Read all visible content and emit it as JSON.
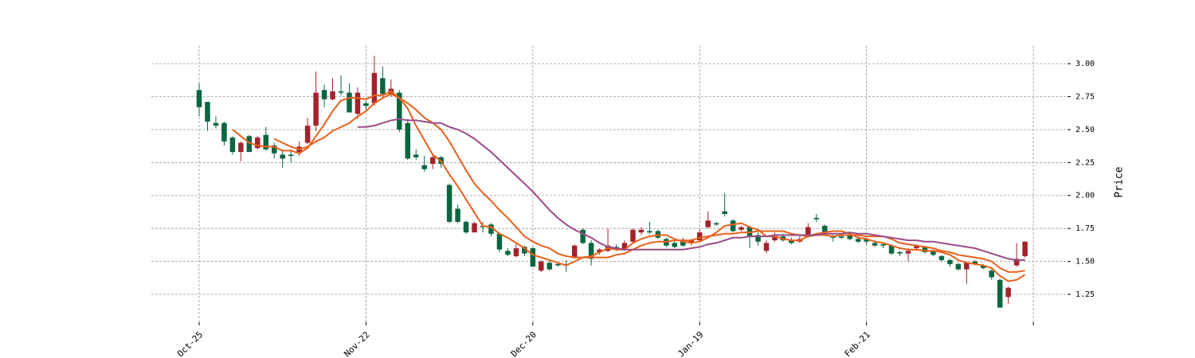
{
  "chart_data": {
    "type": "candlestick",
    "ylabel": "Price",
    "open": [
      2.8,
      2.71,
      2.55,
      2.55,
      2.44,
      2.33,
      2.45,
      2.36,
      2.46,
      2.38,
      2.31,
      2.31,
      2.33,
      2.4,
      2.53,
      2.8,
      2.73,
      2.79,
      2.78,
      2.62,
      2.7,
      2.7,
      2.89,
      2.77,
      2.78,
      2.55,
      2.31,
      2.23,
      2.24,
      2.29,
      2.08,
      1.9,
      1.8,
      1.72,
      1.77,
      1.78,
      1.71,
      1.58,
      1.54,
      1.61,
      1.6,
      1.43,
      1.49,
      1.48,
      1.48,
      1.53,
      1.74,
      1.64,
      1.57,
      1.58,
      1.61,
      1.59,
      1.65,
      1.72,
      1.73,
      1.73,
      1.67,
      1.64,
      1.65,
      1.64,
      1.66,
      1.76,
      1.79,
      1.88,
      1.81,
      1.74,
      1.76,
      1.7,
      1.58,
      1.66,
      1.69,
      1.66,
      1.65,
      1.7,
      1.83,
      1.77,
      1.69,
      1.69,
      1.7,
      1.67,
      1.67,
      1.64,
      1.63,
      1.62,
      1.57,
      1.56,
      1.6,
      1.61,
      1.58,
      1.54,
      1.51,
      1.48,
      1.44,
      1.5,
      1.47,
      1.43,
      1.36,
      1.23,
      1.47,
      1.54
    ],
    "high": [
      2.85,
      2.71,
      2.6,
      2.56,
      2.45,
      2.41,
      2.46,
      2.45,
      2.52,
      2.4,
      2.35,
      2.35,
      2.41,
      2.59,
      2.94,
      2.84,
      2.89,
      2.91,
      2.85,
      2.82,
      2.72,
      3.06,
      2.98,
      2.88,
      2.8,
      2.58,
      2.35,
      2.3,
      2.31,
      2.3,
      2.09,
      1.93,
      1.81,
      1.8,
      1.8,
      1.79,
      1.72,
      1.6,
      1.63,
      1.62,
      1.61,
      1.51,
      1.51,
      1.49,
      1.51,
      1.63,
      1.75,
      1.66,
      1.6,
      1.75,
      1.63,
      1.66,
      1.75,
      1.76,
      1.8,
      1.74,
      1.68,
      1.66,
      1.68,
      1.67,
      1.74,
      1.88,
      1.8,
      2.02,
      1.82,
      1.77,
      1.77,
      1.72,
      1.66,
      1.72,
      1.71,
      1.68,
      1.7,
      1.79,
      1.86,
      1.78,
      1.7,
      1.7,
      1.71,
      1.69,
      1.68,
      1.66,
      1.64,
      1.63,
      1.58,
      1.6,
      1.63,
      1.62,
      1.59,
      1.55,
      1.52,
      1.49,
      1.5,
      1.51,
      1.48,
      1.44,
      1.37,
      1.31,
      1.64,
      1.65
    ],
    "low": [
      2.6,
      2.49,
      2.51,
      2.38,
      2.31,
      2.26,
      2.33,
      2.35,
      2.34,
      2.28,
      2.21,
      2.25,
      2.3,
      2.39,
      2.49,
      2.67,
      2.72,
      2.76,
      2.63,
      2.58,
      2.65,
      2.68,
      2.73,
      2.75,
      2.48,
      2.27,
      2.27,
      2.18,
      2.2,
      2.21,
      1.79,
      1.79,
      1.71,
      1.72,
      1.72,
      1.69,
      1.57,
      1.54,
      1.53,
      1.54,
      1.46,
      1.42,
      1.43,
      1.46,
      1.42,
      1.52,
      1.63,
      1.47,
      1.55,
      1.57,
      1.58,
      1.58,
      1.64,
      1.7,
      1.71,
      1.67,
      1.61,
      1.6,
      1.61,
      1.62,
      1.65,
      1.75,
      1.77,
      1.84,
      1.72,
      1.73,
      1.6,
      1.62,
      1.56,
      1.65,
      1.65,
      1.63,
      1.64,
      1.69,
      1.8,
      1.7,
      1.65,
      1.67,
      1.66,
      1.64,
      1.63,
      1.61,
      1.6,
      1.55,
      1.54,
      1.5,
      1.58,
      1.56,
      1.54,
      1.5,
      1.46,
      1.43,
      1.33,
      1.47,
      1.44,
      1.36,
      1.15,
      1.18,
      1.46,
      1.53
    ],
    "close": [
      2.67,
      2.56,
      2.53,
      2.41,
      2.33,
      2.4,
      2.33,
      2.44,
      2.35,
      2.32,
      2.28,
      2.3,
      2.37,
      2.53,
      2.78,
      2.73,
      2.79,
      2.78,
      2.63,
      2.78,
      2.68,
      2.93,
      2.77,
      2.81,
      2.5,
      2.28,
      2.29,
      2.2,
      2.29,
      2.24,
      1.8,
      1.8,
      1.72,
      1.79,
      1.76,
      1.71,
      1.59,
      1.55,
      1.6,
      1.56,
      1.46,
      1.5,
      1.44,
      1.47,
      1.47,
      1.62,
      1.64,
      1.52,
      1.59,
      1.62,
      1.59,
      1.64,
      1.74,
      1.74,
      1.72,
      1.68,
      1.62,
      1.61,
      1.62,
      1.66,
      1.72,
      1.81,
      1.78,
      1.86,
      1.73,
      1.76,
      1.69,
      1.65,
      1.64,
      1.7,
      1.66,
      1.64,
      1.67,
      1.76,
      1.82,
      1.72,
      1.68,
      1.68,
      1.67,
      1.65,
      1.65,
      1.62,
      1.62,
      1.56,
      1.56,
      1.58,
      1.62,
      1.57,
      1.55,
      1.51,
      1.48,
      1.44,
      1.49,
      1.48,
      1.45,
      1.38,
      1.15,
      1.3,
      1.52,
      1.65
    ],
    "up_color": "#a3232d",
    "down_color": "#0a6640",
    "moving_averages": [
      {
        "color": "#e8601c",
        "values": [
          null,
          null,
          null,
          null,
          2.5,
          2.45,
          2.4,
          2.38,
          2.37,
          2.37,
          2.34,
          2.34,
          2.32,
          2.36,
          2.45,
          2.54,
          2.64,
          2.72,
          2.74,
          2.74,
          2.73,
          2.76,
          2.76,
          2.79,
          2.74,
          2.66,
          2.53,
          2.42,
          2.31,
          2.26,
          2.16,
          2.07,
          1.97,
          1.87,
          1.77,
          1.76,
          1.71,
          1.68,
          1.64,
          1.6,
          1.55,
          1.53,
          1.51,
          1.49,
          1.47,
          1.5,
          1.53,
          1.54,
          1.57,
          1.6,
          1.59,
          1.59,
          1.64,
          1.67,
          1.69,
          1.7,
          1.7,
          1.67,
          1.65,
          1.64,
          1.65,
          1.68,
          1.72,
          1.77,
          1.78,
          1.79,
          1.76,
          1.74,
          1.69,
          1.69,
          1.67,
          1.66,
          1.66,
          1.69,
          1.71,
          1.72,
          1.73,
          1.73,
          1.71,
          1.68,
          1.67,
          1.65,
          1.64,
          1.62,
          1.6,
          1.59,
          1.59,
          1.58,
          1.58,
          1.57,
          1.55,
          1.51,
          1.49,
          1.48,
          1.47,
          1.45,
          1.39,
          1.35,
          1.36,
          1.4
        ]
      },
      {
        "color": "#e8601c",
        "values": [
          null,
          null,
          null,
          null,
          null,
          null,
          null,
          null,
          null,
          2.43,
          2.4,
          2.37,
          2.35,
          2.37,
          2.41,
          2.44,
          2.49,
          2.52,
          2.55,
          2.6,
          2.64,
          2.7,
          2.74,
          2.77,
          2.74,
          2.7,
          2.65,
          2.59,
          2.55,
          2.5,
          2.41,
          2.3,
          2.19,
          2.09,
          2.02,
          1.96,
          1.89,
          1.83,
          1.76,
          1.69,
          1.65,
          1.62,
          1.6,
          1.56,
          1.54,
          1.53,
          1.53,
          1.53,
          1.53,
          1.53,
          1.55,
          1.56,
          1.59,
          1.62,
          1.64,
          1.65,
          1.65,
          1.66,
          1.66,
          1.66,
          1.68,
          1.69,
          1.7,
          1.71,
          1.71,
          1.72,
          1.72,
          1.73,
          1.73,
          1.73,
          1.73,
          1.71,
          1.7,
          1.69,
          1.7,
          1.7,
          1.69,
          1.7,
          1.7,
          1.7,
          1.69,
          1.69,
          1.69,
          1.67,
          1.64,
          1.63,
          1.62,
          1.61,
          1.6,
          1.58,
          1.57,
          1.55,
          1.54,
          1.53,
          1.52,
          1.5,
          1.45,
          1.42,
          1.42,
          1.43
        ]
      },
      {
        "color": "#9b4b86",
        "values": [
          null,
          null,
          null,
          null,
          null,
          null,
          null,
          null,
          null,
          null,
          null,
          null,
          null,
          null,
          null,
          null,
          null,
          null,
          null,
          2.52,
          2.52,
          2.53,
          2.55,
          2.57,
          2.58,
          2.57,
          2.57,
          2.56,
          2.55,
          2.55,
          2.52,
          2.5,
          2.47,
          2.43,
          2.38,
          2.33,
          2.27,
          2.21,
          2.15,
          2.09,
          2.03,
          1.96,
          1.89,
          1.83,
          1.78,
          1.74,
          1.71,
          1.68,
          1.64,
          1.61,
          1.6,
          1.59,
          1.59,
          1.59,
          1.59,
          1.59,
          1.59,
          1.59,
          1.59,
          1.6,
          1.61,
          1.63,
          1.64,
          1.66,
          1.68,
          1.68,
          1.69,
          1.69,
          1.69,
          1.7,
          1.7,
          1.7,
          1.7,
          1.7,
          1.7,
          1.71,
          1.71,
          1.71,
          1.72,
          1.71,
          1.71,
          1.7,
          1.69,
          1.68,
          1.67,
          1.66,
          1.66,
          1.65,
          1.65,
          1.64,
          1.63,
          1.62,
          1.61,
          1.6,
          1.58,
          1.56,
          1.54,
          1.52,
          1.51,
          1.51
        ]
      }
    ],
    "xlim": [
      -5.73,
      104.1
    ],
    "xticks": [
      {
        "value": 0,
        "label": "Oct-25"
      },
      {
        "value": 20,
        "label": "Nov-22"
      },
      {
        "value": 40,
        "label": "Dec-20"
      },
      {
        "value": 60,
        "label": "Jan-19"
      },
      {
        "value": 80,
        "label": "Feb-21"
      },
      {
        "value": 100,
        "label": null
      }
    ],
    "ylim": [
      1.039,
      3.139
    ],
    "yticks": [
      {
        "value": 1.25,
        "label": "1.25"
      },
      {
        "value": 1.5,
        "label": "1.50"
      },
      {
        "value": 1.75,
        "label": "1.75"
      },
      {
        "value": 2,
        "label": "2.00"
      },
      {
        "value": 2.25,
        "label": "2.25"
      },
      {
        "value": 2.5,
        "label": "2.50"
      },
      {
        "value": 2.75,
        "label": "2.75"
      },
      {
        "value": 3,
        "label": "3.00"
      }
    ],
    "grid": true
  }
}
